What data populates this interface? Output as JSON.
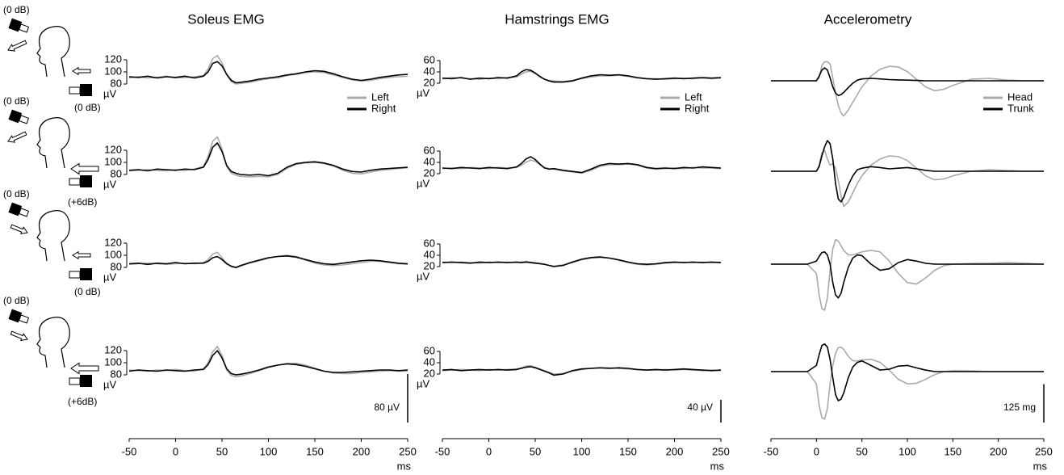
{
  "stimuli": [
    {
      "upper": "(0 dB)",
      "lower": "(0 dB)"
    },
    {
      "upper": "(0 dB)",
      "lower": "(+6dB)"
    },
    {
      "upper": "(0 dB)",
      "lower": "(0 dB)"
    },
    {
      "upper": "(0 dB)",
      "lower": "(+6dB)"
    }
  ],
  "chart_data": [
    {
      "type": "line",
      "title": "Soleus EMG",
      "x": [
        -50,
        -40,
        -30,
        -20,
        -10,
        0,
        10,
        20,
        30,
        35,
        40,
        45,
        50,
        55,
        60,
        65,
        70,
        80,
        90,
        100,
        110,
        120,
        130,
        140,
        150,
        160,
        170,
        180,
        190,
        200,
        210,
        220,
        230,
        240,
        250
      ],
      "xlim": [
        -50,
        250
      ],
      "xticks": [
        -50,
        0,
        50,
        100,
        150,
        200,
        250
      ],
      "xlabel": "ms",
      "ylim": [
        60,
        140
      ],
      "yticks": [
        80,
        100,
        120
      ],
      "ylabel": "µV",
      "scale_bar": {
        "value": 80,
        "label": "80 µV"
      },
      "series": [
        {
          "name": "Left",
          "color": "#aaaaaa",
          "values": [
            [
              90,
              92,
              90,
              91,
              93,
              90,
              91,
              92,
              94,
              105,
              122,
              127,
              115,
              95,
              84,
              80,
              81,
              83,
              86,
              89,
              90,
              94,
              96,
              99,
              100,
              99,
              95,
              91,
              87,
              85,
              86,
              89,
              91,
              92,
              93
            ],
            [
              86,
              87,
              88,
              87,
              86,
              88,
              87,
              89,
              93,
              110,
              135,
              142,
              122,
              93,
              82,
              79,
              77,
              76,
              77,
              76,
              80,
              90,
              97,
              99,
              100,
              98,
              94,
              87,
              82,
              81,
              84,
              87,
              88,
              90,
              91
            ],
            [
              85,
              86,
              87,
              86,
              85,
              86,
              87,
              86,
              88,
              93,
              102,
              105,
              96,
              87,
              81,
              79,
              82,
              87,
              91,
              95,
              98,
              100,
              98,
              92,
              87,
              84,
              83,
              84,
              86,
              88,
              90,
              90,
              88,
              86,
              85
            ],
            [
              88,
              87,
              86,
              88,
              87,
              89,
              87,
              86,
              90,
              100,
              118,
              127,
              112,
              88,
              79,
              77,
              78,
              82,
              87,
              92,
              96,
              99,
              99,
              96,
              91,
              86,
              83,
              82,
              82,
              84,
              85,
              86,
              87,
              86,
              86
            ]
          ]
        },
        {
          "name": "Right",
          "color": "#000000",
          "values": [
            [
              92,
              91,
              93,
              90,
              92,
              91,
              93,
              90,
              93,
              100,
              114,
              117,
              110,
              96,
              86,
              82,
              83,
              85,
              88,
              90,
              92,
              95,
              97,
              100,
              102,
              101,
              97,
              92,
              88,
              86,
              88,
              91,
              93,
              95,
              96
            ],
            [
              87,
              88,
              86,
              89,
              88,
              87,
              89,
              88,
              92,
              105,
              125,
              132,
              118,
              95,
              85,
              82,
              80,
              79,
              80,
              78,
              82,
              92,
              98,
              100,
              101,
              99,
              95,
              89,
              85,
              84,
              87,
              89,
              90,
              91,
              92
            ],
            [
              86,
              87,
              85,
              87,
              86,
              88,
              86,
              87,
              87,
              90,
              96,
              98,
              93,
              86,
              82,
              80,
              83,
              88,
              92,
              96,
              98,
              99,
              97,
              93,
              89,
              86,
              85,
              87,
              89,
              91,
              92,
              91,
              89,
              87,
              86
            ],
            [
              86,
              88,
              87,
              86,
              88,
              87,
              86,
              88,
              89,
              97,
              112,
              120,
              108,
              90,
              82,
              80,
              81,
              84,
              88,
              93,
              96,
              98,
              97,
              94,
              90,
              86,
              84,
              84,
              85,
              86,
              87,
              88,
              88,
              87,
              88
            ]
          ]
        }
      ]
    },
    {
      "type": "line",
      "title": "Hamstrings EMG",
      "x": [
        -50,
        -40,
        -30,
        -20,
        -10,
        0,
        10,
        20,
        30,
        35,
        40,
        45,
        50,
        55,
        60,
        65,
        70,
        80,
        90,
        100,
        110,
        120,
        130,
        140,
        150,
        160,
        170,
        180,
        190,
        200,
        210,
        220,
        230,
        240,
        250
      ],
      "xlim": [
        -50,
        250
      ],
      "xticks": [
        -50,
        0,
        50,
        100,
        150,
        200,
        250
      ],
      "xlabel": "ms",
      "ylim": [
        0,
        80
      ],
      "yticks": [
        20,
        40,
        60
      ],
      "ylabel": "µV",
      "scale_bar": {
        "value": 40,
        "label": "40 µV"
      },
      "series": [
        {
          "name": "Left",
          "color": "#aaaaaa",
          "values": [
            [
              28,
              30,
              29,
              28,
              27,
              29,
              28,
              30,
              31,
              36,
              40,
              41,
              37,
              31,
              27,
              25,
              24,
              23,
              25,
              28,
              31,
              33,
              33,
              34,
              32,
              29,
              28,
              28,
              27,
              28,
              29,
              28,
              29,
              28,
              29
            ],
            [
              29,
              30,
              29,
              31,
              30,
              29,
              31,
              30,
              31,
              35,
              40,
              44,
              42,
              36,
              31,
              29,
              28,
              25,
              23,
              21,
              26,
              33,
              36,
              36,
              37,
              35,
              30,
              28,
              29,
              30,
              29,
              31,
              30,
              30,
              29
            ],
            [
              28,
              27,
              28,
              27,
              26,
              28,
              27,
              28,
              27,
              28,
              29,
              28,
              27,
              26,
              24,
              22,
              21,
              23,
              27,
              32,
              35,
              36,
              35,
              31,
              27,
              24,
              23,
              24,
              26,
              27,
              28,
              27,
              28,
              27,
              28
            ],
            [
              26,
              27,
              28,
              27,
              26,
              28,
              27,
              28,
              29,
              31,
              34,
              35,
              32,
              29,
              26,
              23,
              20,
              21,
              25,
              28,
              30,
              31,
              31,
              30,
              29,
              28,
              27,
              27,
              28,
              27,
              28,
              27,
              26,
              27,
              26
            ]
          ]
        },
        {
          "name": "Right",
          "color": "#000000",
          "values": [
            [
              29,
              28,
              30,
              27,
              29,
              28,
              30,
              29,
              33,
              40,
              44,
              43,
              38,
              32,
              27,
              24,
              22,
              22,
              24,
              29,
              33,
              35,
              34,
              35,
              33,
              30,
              28,
              27,
              28,
              29,
              28,
              29,
              30,
              29,
              30
            ],
            [
              30,
              29,
              31,
              30,
              29,
              31,
              30,
              29,
              32,
              38,
              46,
              50,
              45,
              37,
              30,
              28,
              29,
              26,
              24,
              22,
              28,
              35,
              38,
              37,
              38,
              36,
              31,
              29,
              30,
              29,
              31,
              30,
              32,
              31,
              30
            ],
            [
              27,
              28,
              27,
              26,
              28,
              27,
              28,
              27,
              28,
              27,
              28,
              27,
              26,
              25,
              24,
              22,
              20,
              22,
              28,
              33,
              36,
              37,
              35,
              32,
              28,
              25,
              24,
              25,
              27,
              28,
              27,
              28,
              27,
              28,
              27
            ],
            [
              27,
              28,
              26,
              27,
              28,
              27,
              28,
              27,
              28,
              30,
              32,
              33,
              31,
              28,
              25,
              22,
              18,
              20,
              26,
              29,
              30,
              31,
              30,
              31,
              30,
              28,
              27,
              28,
              27,
              28,
              29,
              28,
              27,
              26,
              27
            ]
          ]
        }
      ]
    },
    {
      "type": "line",
      "title": "Accelerometry",
      "x": [
        -50,
        -25,
        -10,
        0,
        3,
        6,
        9,
        12,
        15,
        18,
        21,
        24,
        27,
        30,
        35,
        40,
        45,
        50,
        60,
        70,
        80,
        90,
        100,
        110,
        120,
        130,
        140,
        150,
        170,
        190,
        210,
        230,
        250
      ],
      "xlim": [
        -50,
        250
      ],
      "xticks": [
        -50,
        0,
        50,
        100,
        150,
        200,
        250
      ],
      "xlabel": "ms",
      "ylim": [
        -200,
        200
      ],
      "scale_bar": {
        "value": 125,
        "label": "125 mg"
      },
      "series": [
        {
          "name": "Head",
          "color": "#aaaaaa",
          "values": [
            [
              0,
              0,
              0,
              0,
              10,
              50,
              62,
              62,
              55,
              10,
              -40,
              -80,
              -105,
              -115,
              -95,
              -70,
              -45,
              -20,
              15,
              38,
              47,
              45,
              30,
              5,
              -20,
              -32,
              -28,
              -15,
              5,
              8,
              2,
              0,
              0
            ],
            [
              0,
              0,
              0,
              0,
              20,
              60,
              68,
              40,
              20,
              25,
              10,
              -30,
              -80,
              -115,
              -100,
              -70,
              -40,
              -15,
              20,
              40,
              50,
              48,
              35,
              10,
              -15,
              -28,
              -25,
              -15,
              0,
              5,
              2,
              0,
              0
            ],
            [
              0,
              0,
              0,
              -30,
              -100,
              -145,
              -150,
              -110,
              -20,
              50,
              80,
              75,
              60,
              45,
              30,
              30,
              35,
              40,
              45,
              40,
              10,
              -30,
              -60,
              -65,
              -45,
              -20,
              -5,
              0,
              2,
              3,
              5,
              3,
              0
            ],
            [
              0,
              0,
              0,
              -40,
              -110,
              -150,
              -155,
              -120,
              -40,
              20,
              60,
              78,
              80,
              72,
              50,
              35,
              35,
              38,
              40,
              30,
              5,
              -25,
              -40,
              -38,
              -25,
              -10,
              0,
              3,
              2,
              0,
              0,
              0,
              0
            ]
          ]
        },
        {
          "name": "Trunk",
          "color": "#000000",
          "values": [
            [
              0,
              0,
              0,
              0,
              15,
              35,
              42,
              35,
              10,
              -20,
              -40,
              -48,
              -45,
              -38,
              -22,
              -8,
              2,
              6,
              8,
              6,
              4,
              3,
              2,
              1,
              0,
              0,
              0,
              0,
              0,
              0,
              0,
              0,
              0
            ],
            [
              0,
              0,
              0,
              0,
              15,
              50,
              80,
              100,
              90,
              40,
              -40,
              -90,
              -100,
              -85,
              -45,
              -15,
              5,
              10,
              15,
              12,
              8,
              10,
              12,
              8,
              3,
              0,
              0,
              0,
              0,
              0,
              0,
              0,
              0
            ],
            [
              0,
              0,
              0,
              10,
              25,
              38,
              40,
              30,
              0,
              -60,
              -100,
              -110,
              -95,
              -60,
              -10,
              20,
              30,
              28,
              0,
              -20,
              -15,
              5,
              15,
              10,
              3,
              0,
              0,
              0,
              0,
              0,
              0,
              0,
              0
            ],
            [
              0,
              0,
              0,
              20,
              55,
              85,
              90,
              80,
              40,
              -20,
              -75,
              -95,
              -90,
              -70,
              -20,
              15,
              30,
              35,
              20,
              5,
              8,
              18,
              20,
              12,
              5,
              0,
              0,
              0,
              0,
              0,
              0,
              0,
              0
            ]
          ]
        }
      ]
    }
  ]
}
